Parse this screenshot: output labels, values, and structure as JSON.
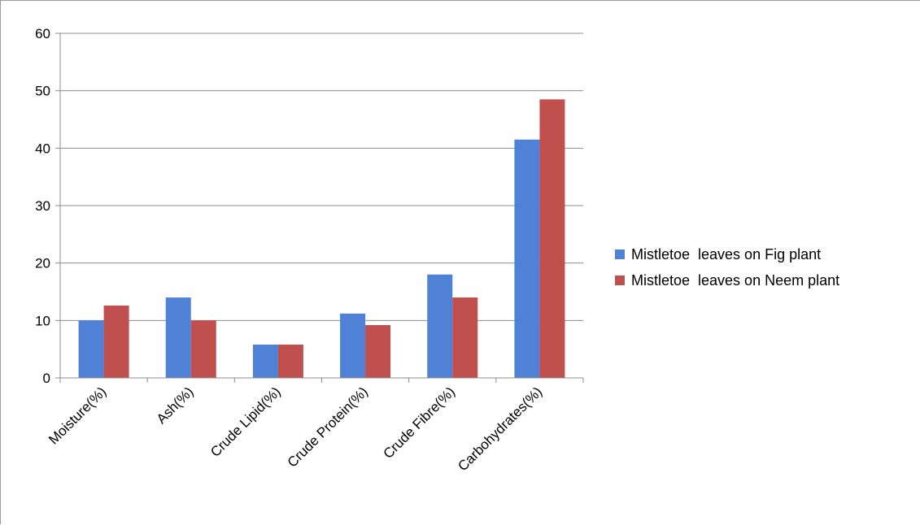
{
  "chart_data": {
    "type": "bar",
    "title": "",
    "xlabel": "",
    "ylabel": "",
    "categories": [
      "Moisture(%)",
      "Ash(%)",
      "Crude Lipid(%)",
      "Crude Protein(%)",
      "Crude Fibre(%)",
      "Carbohydrates(%)"
    ],
    "series": [
      {
        "name": "Mistletoe  leaves on Fig plant",
        "color": "#4f81d7",
        "values": [
          10,
          14,
          5.8,
          11.2,
          18,
          41.5
        ]
      },
      {
        "name": "Mistletoe  leaves on Neem plant",
        "color": "#c0504d",
        "values": [
          12.6,
          10,
          5.8,
          9.2,
          14,
          48.5
        ]
      }
    ],
    "ylim": [
      0,
      60
    ],
    "yticks": [
      0,
      10,
      20,
      30,
      40,
      50,
      60
    ],
    "grid": true,
    "legend": "right"
  }
}
